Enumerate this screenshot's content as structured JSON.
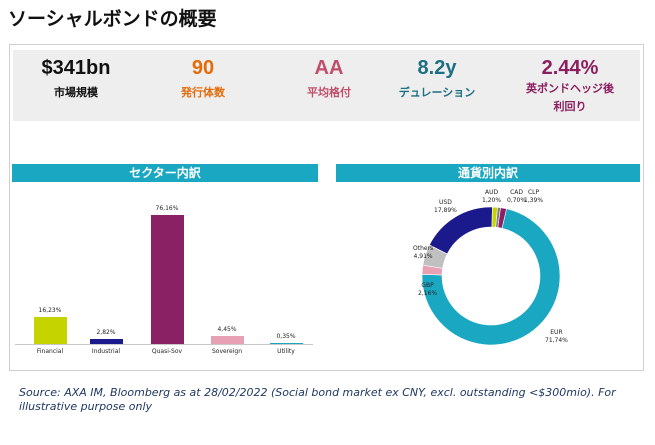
{
  "page": {
    "title": "ソーシャルボンドの概要"
  },
  "kpis": [
    {
      "value": "$341bn",
      "label": "市場規模",
      "color": "#111111"
    },
    {
      "value": "90",
      "label": "発行体数",
      "color": "#e36c09"
    },
    {
      "value": "AA",
      "label": "平均格付",
      "color": "#c0506a"
    },
    {
      "value": "8.2y",
      "label": "デュレーション",
      "color": "#1d6f82"
    },
    {
      "value": "2.44%",
      "label": "英ポンドヘッジ後",
      "label2": "利回り",
      "color": "#8b1e5f"
    }
  ],
  "sector": {
    "header": "セクター内訳"
  },
  "currency": {
    "header": "通貨別内訳"
  },
  "source": "Source: AXA IM, Bloomberg as at 28/02/2022 (Social bond market ex CNY, excl. outstanding  <$300mio). For illustrative purpose only",
  "chart_data": [
    {
      "type": "bar",
      "title": "セクター内訳",
      "categories": [
        "Financial",
        "Industrial",
        "Quasi-Sov",
        "Sovereign",
        "Utility"
      ],
      "values": [
        16.23,
        2.82,
        76.16,
        4.45,
        0.35
      ],
      "value_labels": [
        "16,23%",
        "2,82%",
        "76,16%",
        "4,45%",
        "0,35%"
      ],
      "colors": [
        "#c5d300",
        "#1a1a8c",
        "#8b2165",
        "#e8a0b4",
        "#1aa7c2"
      ],
      "ylim": [
        0,
        80
      ],
      "grid": false
    },
    {
      "type": "pie",
      "style": "donut",
      "title": "通貨別内訳",
      "slices": [
        {
          "name": "EUR",
          "value": 71.74,
          "label": "71,74%",
          "color": "#1aa7c2"
        },
        {
          "name": "GBP",
          "value": 2.16,
          "label": "2,16%",
          "color": "#e8a0b4"
        },
        {
          "name": "Others",
          "value": 4.91,
          "label": "4,91%",
          "color": "#c0c0c0"
        },
        {
          "name": "USD",
          "value": 17.89,
          "label": "17,89%",
          "color": "#1a1a8c"
        },
        {
          "name": "AUD",
          "value": 1.2,
          "label": "1,20%",
          "color": "#c5d300"
        },
        {
          "name": "CAD",
          "value": 0.7,
          "label": "0,70%",
          "color": "#7f7f7f"
        },
        {
          "name": "CLP",
          "value": 1.39,
          "label": "1,39%",
          "color": "#8b2165"
        }
      ]
    }
  ]
}
